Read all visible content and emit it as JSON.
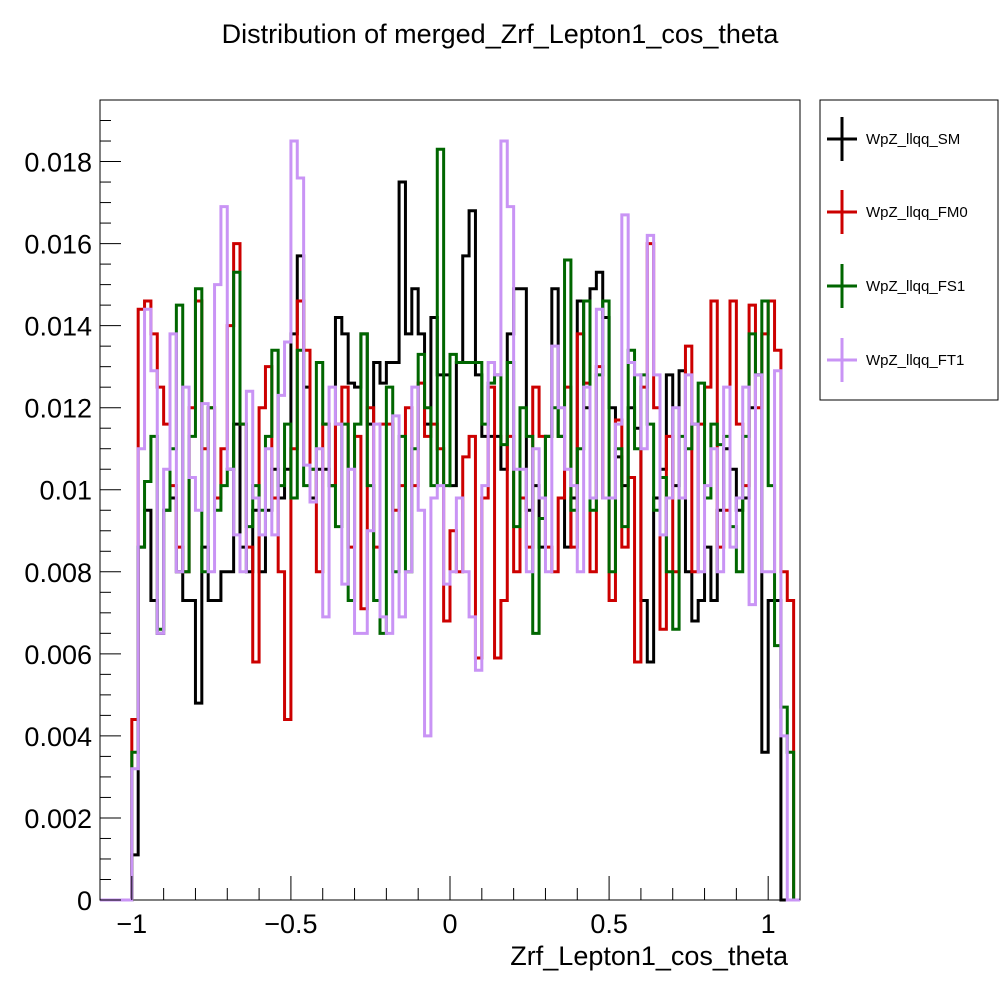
{
  "chart_data": {
    "type": "step-histogram",
    "title": "Distribution of merged_Zrf_Lepton1_cos_theta",
    "xlabel": "Zrf_Lepton1_cos_theta",
    "ylabel": "",
    "xlim": [
      -1.1,
      1.1
    ],
    "ylim": [
      0,
      0.0195
    ],
    "x_ticks": [
      -1,
      -0.5,
      0,
      0.5,
      1
    ],
    "x_tick_labels": [
      "−1",
      "−0.5",
      "0",
      "0.5",
      "1"
    ],
    "y_ticks": [
      0,
      0.002,
      0.004,
      0.006,
      0.008,
      0.01,
      0.012,
      0.014,
      0.016,
      0.018
    ],
    "y_tick_labels": [
      "0",
      "0.002",
      "0.004",
      "0.006",
      "0.008",
      "0.01",
      "0.012",
      "0.014",
      "0.016",
      "0.018"
    ],
    "bin_edges_range": [
      -1.1,
      1.1
    ],
    "n_bins": 110,
    "legend_position": "right, outside plot",
    "series": [
      {
        "name": "WpZ_llqq_SM",
        "color": "#000000",
        "values": [
          0,
          0,
          0,
          0,
          0,
          0.0011,
          0.0086,
          0.0095,
          0.0073,
          0.0065,
          0.0095,
          0.0098,
          0.008,
          0.0073,
          0.0073,
          0.0048,
          0.0086,
          0.0073,
          0.0073,
          0.008,
          0.008,
          0.0116,
          0.0086,
          0.008,
          0.0095,
          0.008,
          0.0095,
          0.0105,
          0.0098,
          0.0105,
          0.0138,
          0.0157,
          0.0125,
          0.0098,
          0.0105,
          0.0105,
          0.0101,
          0.0142,
          0.0138,
          0.0126,
          0.0125,
          0.0138,
          0.0116,
          0.0131,
          0.0126,
          0.0131,
          0.0131,
          0.0175,
          0.0138,
          0.0149,
          0.0138,
          0.0116,
          0.0142,
          0.0128,
          0.0128,
          0.0101,
          0.0131,
          0.0157,
          0.0168,
          0.0128,
          0.0113,
          0.0113,
          0.0113,
          0.0105,
          0.0138,
          0.0149,
          0.0149,
          0.0095,
          0.0101,
          0.0086,
          0.0113,
          0.0149,
          0.0113,
          0.0086,
          0.0098,
          0.0146,
          0.012,
          0.0149,
          0.0153,
          0.0142,
          0.012,
          0.0108,
          0.0101,
          0.012,
          0.0115,
          0.0073,
          0.0058,
          0.0098,
          0.0105,
          0.0128,
          0.0101,
          0.0129,
          0.008,
          0.0068,
          0.0073,
          0.0086,
          0.0073,
          0.0095,
          0.011,
          0.0105,
          0.0095,
          0.0098,
          0.012,
          0.0128,
          0.0036,
          0.0073,
          0.0073,
          0.0,
          0.0,
          0
        ]
      },
      {
        "name": "WpZ_llqq_FM0",
        "color": "#cc0000",
        "values": [
          0,
          0,
          0,
          0,
          0,
          0.0044,
          0.0144,
          0.0146,
          0.0138,
          0.0125,
          0.0116,
          0.0101,
          0.0086,
          0.008,
          0.012,
          0.0146,
          0.011,
          0.012,
          0.0098,
          0.011,
          0.014,
          0.016,
          0.0116,
          0.0086,
          0.0058,
          0.012,
          0.013,
          0.0098,
          0.008,
          0.0044,
          0.011,
          0.0146,
          0.0134,
          0.0105,
          0.008,
          0.0116,
          0.0101,
          0.0116,
          0.0125,
          0.0086,
          0.0113,
          0.0071,
          0.012,
          0.0086,
          0.0116,
          0.0116,
          0.0095,
          0.0101,
          0.012,
          0.0101,
          0.0126,
          0.0113,
          0.0116,
          0.011,
          0.0068,
          0.009,
          0.008,
          0.0108,
          0.0113,
          0.0059,
          0.0098,
          0.0125,
          0.0059,
          0.0073,
          0.0113,
          0.008,
          0.0098,
          0.0086,
          0.0125,
          0.0113,
          0.0086,
          0.008,
          0.0098,
          0.0125,
          0.0086,
          0.0138,
          0.0126,
          0.008,
          0.013,
          0.0098,
          0.0073,
          0.0117,
          0.0086,
          0.0103,
          0.0058,
          0.0125,
          0.016,
          0.012,
          0.0066,
          0.0113,
          0.008,
          0.0098,
          0.0135,
          0.008,
          0.0116,
          0.0125,
          0.0146,
          0.0086,
          0.0095,
          0.0146,
          0.0116,
          0.0101,
          0.0145,
          0.012,
          0.0138,
          0.0146,
          0.0134,
          0.008,
          0.0073,
          0
        ]
      },
      {
        "name": "WpZ_llqq_FS1",
        "color": "#006600",
        "values": [
          0,
          0,
          0,
          0,
          0,
          0.0036,
          0.0086,
          0.0102,
          0.0113,
          0.0066,
          0.0095,
          0.011,
          0.0145,
          0.008,
          0.0113,
          0.0149,
          0.008,
          0.012,
          0.0095,
          0.0101,
          0.0105,
          0.0153,
          0.0116,
          0.0091,
          0.0101,
          0.0095,
          0.0113,
          0.0134,
          0.0101,
          0.0116,
          0.0098,
          0.0134,
          0.0101,
          0.0105,
          0.0131,
          0.0116,
          0.0101,
          0.0091,
          0.0116,
          0.0073,
          0.0116,
          0.0138,
          0.0101,
          0.0073,
          0.0065,
          0.0125,
          0.008,
          0.0113,
          0.008,
          0.011,
          0.0133,
          0.012,
          0.0101,
          0.0183,
          0.0101,
          0.0133,
          0.0131,
          0.0131,
          0.0131,
          0.0131,
          0.0116,
          0.0126,
          0.0128,
          0.0111,
          0.0131,
          0.0091,
          0.012,
          0.0113,
          0.0065,
          0.0093,
          0.0113,
          0.012,
          0.0113,
          0.0156,
          0.0095,
          0.011,
          0.0146,
          0.0095,
          0.0128,
          0.0146,
          0.008,
          0.011,
          0.0091,
          0.0134,
          0.011,
          0.0128,
          0.0116,
          0.0095,
          0.0103,
          0.008,
          0.0066,
          0.0113,
          0.011,
          0.0116,
          0.0126,
          0.0098,
          0.0116,
          0.0111,
          0.0113,
          0.0091,
          0.008,
          0.0113,
          0.0138,
          0.0128,
          0.0146,
          0.0101,
          0.0062,
          0.0047,
          0.0036,
          0
        ]
      },
      {
        "name": "WpZ_llqq_FT1",
        "color": "#c994f5",
        "values": [
          0,
          0,
          0,
          0,
          0,
          0.0032,
          0.011,
          0.0144,
          0.0129,
          0.0065,
          0.0105,
          0.0138,
          0.008,
          0.0125,
          0.0103,
          0.0095,
          0.0121,
          0.008,
          0.015,
          0.0169,
          0.0105,
          0.0089,
          0.008,
          0.0124,
          0.0098,
          0.0089,
          0.011,
          0.0089,
          0.0123,
          0.0136,
          0.0185,
          0.0176,
          0.0106,
          0.0097,
          0.011,
          0.0069,
          0.0125,
          0.0116,
          0.0077,
          0.0105,
          0.0065,
          0.0065,
          0.009,
          0.0116,
          0.0069,
          0.0065,
          0.0118,
          0.0069,
          0.008,
          0.0125,
          0.0095,
          0.004,
          0.0098,
          0.0101,
          0.0077,
          0.008,
          0.0098,
          0.008,
          0.0069,
          0.0056,
          0.0101,
          0.0131,
          0.0128,
          0.0185,
          0.0169,
          0.0105,
          0.0105,
          0.008,
          0.011,
          0.0098,
          0.008,
          0.0135,
          0.012,
          0.0105,
          0.0101,
          0.008,
          0.0125,
          0.0098,
          0.0144,
          0.0098,
          0.0098,
          0.0116,
          0.0167,
          0.0131,
          0.0128,
          0.011,
          0.0162,
          0.0128,
          0.0089,
          0.0098,
          0.012,
          0.0098,
          0.0128,
          0.0116,
          0.008,
          0.0101,
          0.011,
          0.008,
          0.0125,
          0.0086,
          0.0098,
          0.0125,
          0.0072,
          0.0128,
          0.008,
          0.008,
          0.0129,
          0.004,
          0.0,
          0
        ]
      }
    ]
  }
}
